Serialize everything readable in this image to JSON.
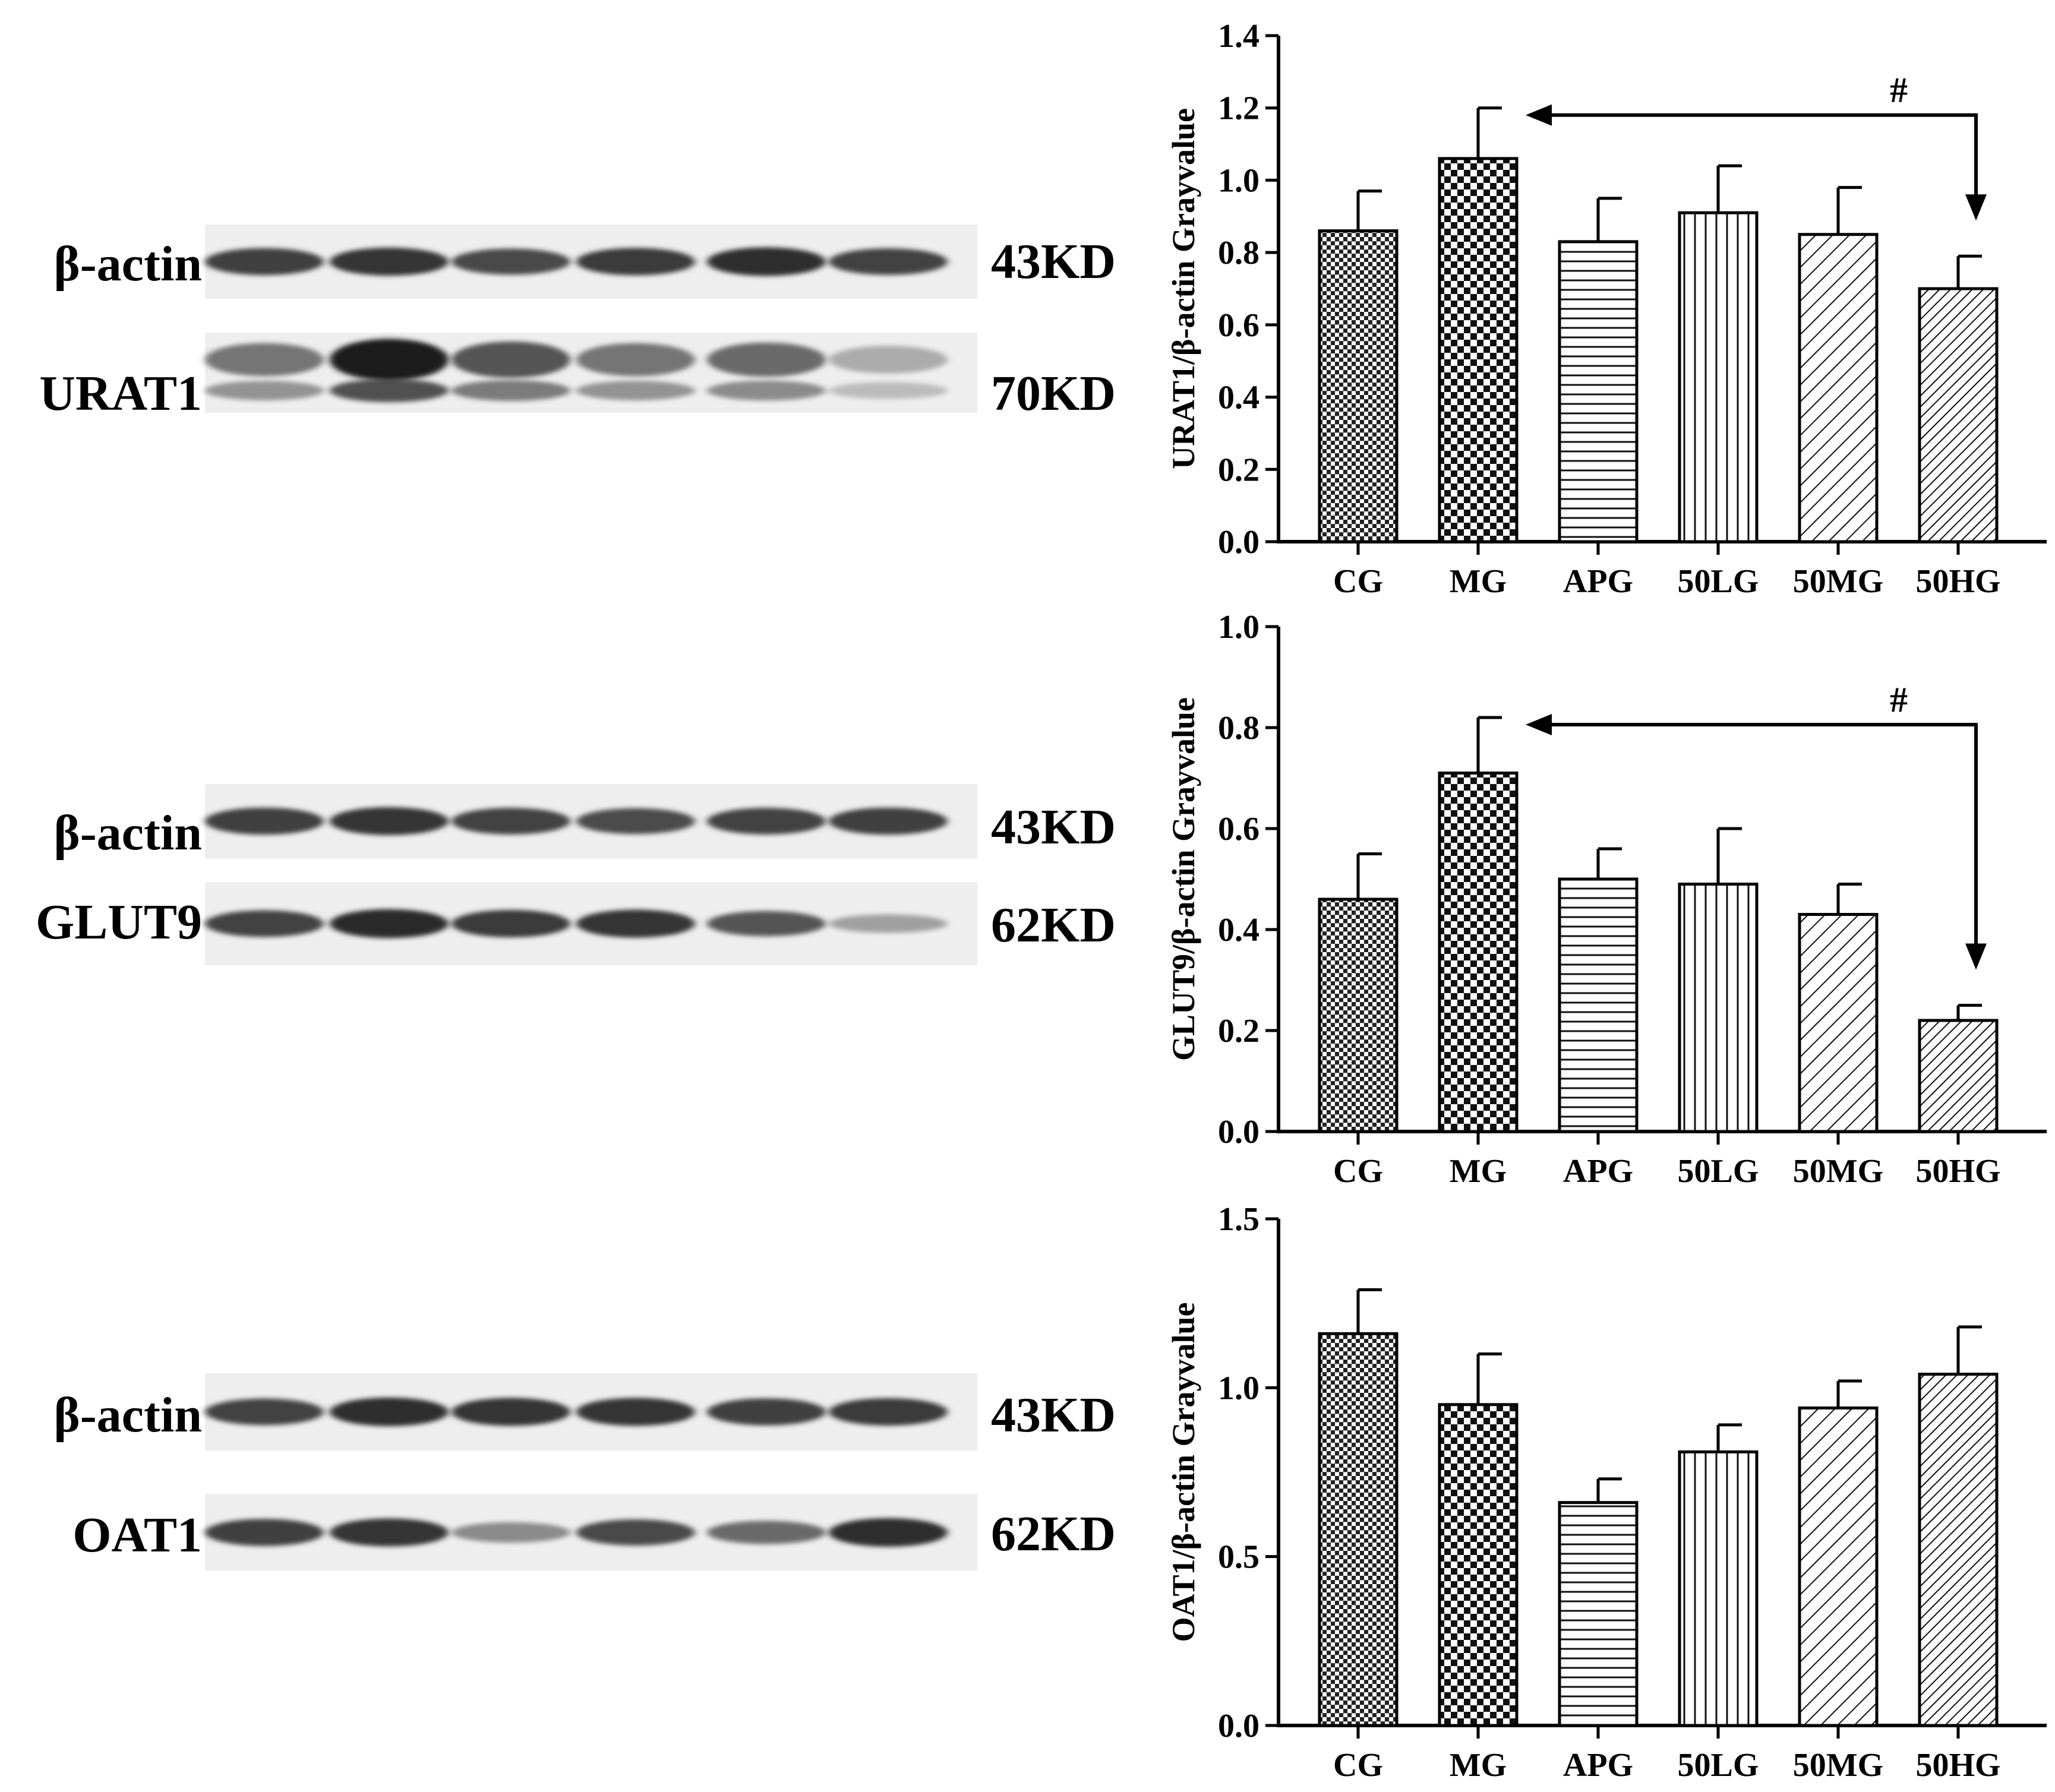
{
  "blots": [
    {
      "rows": [
        {
          "protein": "β-actin",
          "size": "43KD",
          "intensities": [
            0.8,
            0.85,
            0.75,
            0.82,
            0.88,
            0.78
          ],
          "double": false
        },
        {
          "protein": "URAT1",
          "size": "70KD",
          "intensities": [
            0.55,
            0.95,
            0.7,
            0.55,
            0.6,
            0.3
          ],
          "double": true
        }
      ]
    },
    {
      "rows": [
        {
          "protein": "β-actin",
          "size": "43KD",
          "intensities": [
            0.8,
            0.85,
            0.78,
            0.74,
            0.78,
            0.8
          ],
          "double": false
        },
        {
          "protein": "GLUT9",
          "size": "62KD",
          "intensities": [
            0.78,
            0.9,
            0.82,
            0.85,
            0.7,
            0.35
          ],
          "double": false
        }
      ]
    },
    {
      "rows": [
        {
          "protein": "β-actin",
          "size": "43KD",
          "intensities": [
            0.78,
            0.88,
            0.85,
            0.85,
            0.8,
            0.82
          ],
          "double": false
        },
        {
          "protein": "OAT1",
          "size": "62KD",
          "intensities": [
            0.8,
            0.85,
            0.45,
            0.75,
            0.6,
            0.88
          ],
          "double": false
        }
      ]
    }
  ],
  "chart_data": [
    {
      "type": "bar",
      "categories": [
        "CG",
        "MG",
        "APG",
        "50LG",
        "50MG",
        "50HG"
      ],
      "values": [
        0.86,
        1.06,
        0.83,
        0.91,
        0.85,
        0.7
      ],
      "errors": [
        0.11,
        0.14,
        0.12,
        0.13,
        0.13,
        0.09
      ],
      "patterns": [
        "fine-check",
        "coarse-check",
        "horizontal",
        "vertical",
        "diagonal-wide",
        "diagonal-dense"
      ],
      "ylabel": "URAT1/β-actin Grayvalue",
      "ylim": [
        0,
        1.4
      ],
      "yticks": [
        "0.0",
        "0.2",
        "0.4",
        "0.6",
        "0.8",
        "1.0",
        "1.2",
        "1.4"
      ],
      "annotation": {
        "text": "#",
        "from": "50HG",
        "to": "MG"
      }
    },
    {
      "type": "bar",
      "categories": [
        "CG",
        "MG",
        "APG",
        "50LG",
        "50MG",
        "50HG"
      ],
      "values": [
        0.46,
        0.71,
        0.5,
        0.49,
        0.43,
        0.22
      ],
      "errors": [
        0.09,
        0.11,
        0.06,
        0.11,
        0.06,
        0.03
      ],
      "patterns": [
        "fine-check",
        "coarse-check",
        "horizontal",
        "vertical",
        "diagonal-wide",
        "diagonal-dense"
      ],
      "ylabel": "GLUT9/β-actin Grayvalue",
      "ylim": [
        0,
        1.0
      ],
      "yticks": [
        "0.0",
        "0.2",
        "0.4",
        "0.6",
        "0.8",
        "1.0"
      ],
      "annotation": {
        "text": "#",
        "from": "50HG",
        "to": "MG"
      }
    },
    {
      "type": "bar",
      "categories": [
        "CG",
        "MG",
        "APG",
        "50LG",
        "50MG",
        "50HG"
      ],
      "values": [
        1.16,
        0.95,
        0.66,
        0.81,
        0.94,
        1.04
      ],
      "errors": [
        0.13,
        0.15,
        0.07,
        0.08,
        0.08,
        0.14
      ],
      "patterns": [
        "fine-check",
        "coarse-check",
        "horizontal",
        "vertical",
        "diagonal-wide",
        "diagonal-dense"
      ],
      "ylabel": "OAT1/β-actin Grayvalue",
      "ylim": [
        0,
        1.5
      ],
      "yticks": [
        "0.0",
        "0.5",
        "1.0",
        "1.5"
      ],
      "annotation": null
    }
  ]
}
